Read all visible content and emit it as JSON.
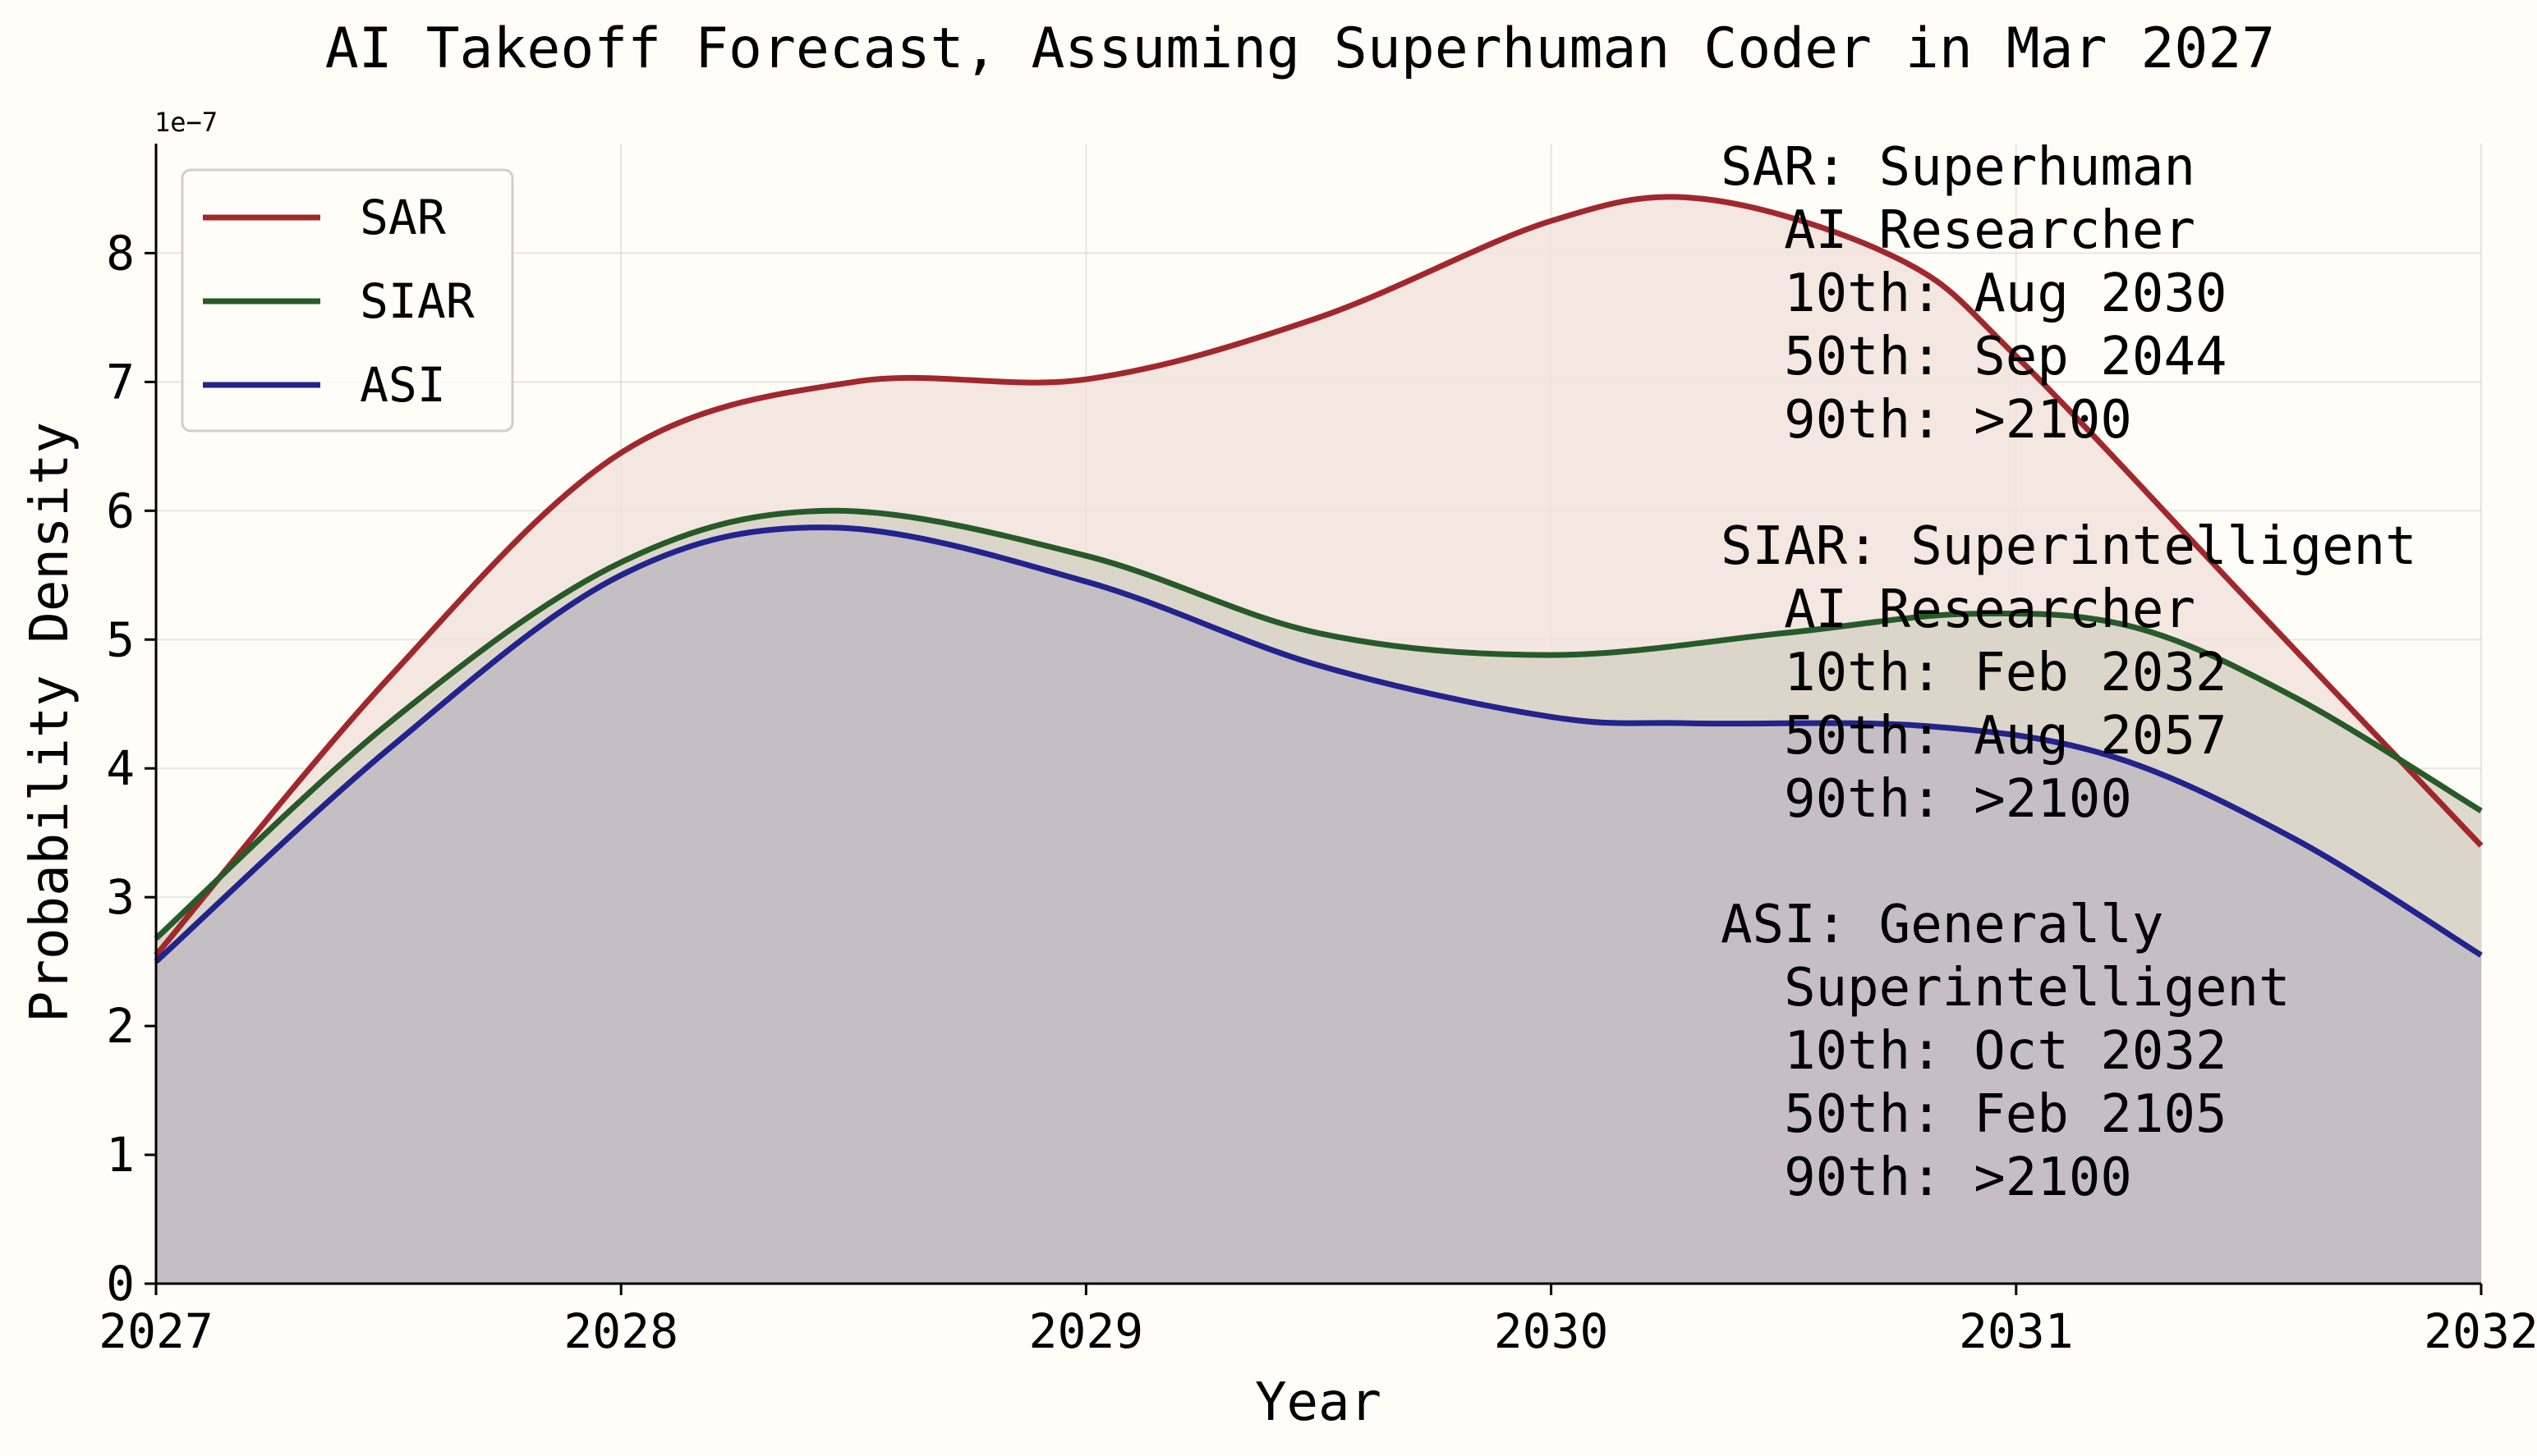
{
  "chart_data": {
    "type": "line",
    "title": "AI Takeoff Forecast, Assuming Superhuman Coder in Mar 2027",
    "xlabel": "Year",
    "ylabel": "Probability Density",
    "y_offset_label": "1e−7",
    "xlim": [
      2027,
      2032
    ],
    "ylim": [
      0,
      8.85
    ],
    "x_ticks": [
      2027,
      2028,
      2029,
      2030,
      2031,
      2032
    ],
    "x_tick_labels": [
      "2027",
      "2028",
      "2029",
      "2030",
      "2031",
      "2032"
    ],
    "y_ticks": [
      0,
      1,
      2,
      3,
      4,
      5,
      6,
      7,
      8
    ],
    "y_tick_labels": [
      "0",
      "1",
      "2",
      "3",
      "4",
      "5",
      "6",
      "7",
      "8"
    ],
    "y_units": "×1e−7",
    "grid": true,
    "legend_position": "top-left",
    "series": [
      {
        "name": "SAR",
        "color": "#a0282d",
        "fill": "#f2e2dd",
        "x": [
          2027,
          2027.5,
          2028,
          2028.5,
          2029,
          2029.5,
          2030,
          2030.33,
          2030.75,
          2031,
          2031.5,
          2032
        ],
        "values": [
          2.55,
          4.7,
          6.45,
          7.0,
          7.02,
          7.5,
          8.25,
          8.42,
          7.95,
          7.2,
          5.3,
          3.4
        ]
      },
      {
        "name": "SIAR",
        "color": "#275a28",
        "fill": "#d7d2c6",
        "x": [
          2027,
          2027.5,
          2028,
          2028.45,
          2029,
          2029.5,
          2030,
          2030.5,
          2030.9,
          2031.25,
          2031.6,
          2032
        ],
        "values": [
          2.68,
          4.35,
          5.6,
          6.0,
          5.65,
          5.05,
          4.88,
          5.05,
          5.2,
          5.1,
          4.55,
          3.67
        ]
      },
      {
        "name": "ASI",
        "color": "#22238c",
        "fill": "#c1bbc3",
        "x": [
          2027,
          2027.5,
          2028,
          2028.45,
          2029,
          2029.5,
          2030,
          2030.3,
          2030.8,
          2031.2,
          2031.6,
          2032
        ],
        "values": [
          2.5,
          4.15,
          5.5,
          5.87,
          5.45,
          4.8,
          4.4,
          4.35,
          4.33,
          4.1,
          3.45,
          2.55
        ]
      }
    ],
    "annotations": [
      {
        "name": "SAR",
        "lines": [
          "SAR: Superhuman",
          "  AI Researcher",
          "  10th: Aug 2030",
          "  50th: Sep 2044",
          "  90th: >2100"
        ]
      },
      {
        "name": "SIAR",
        "lines": [
          "SIAR: Superintelligent",
          "  AI Researcher",
          "  10th: Feb 2032",
          "  50th: Aug 2057",
          "  90th: >2100"
        ]
      },
      {
        "name": "ASI",
        "lines": [
          "ASI: Generally",
          "  Superintelligent",
          "  10th: Oct 2032",
          "  50th: Feb 2105",
          "  90th: >2100"
        ]
      }
    ]
  }
}
